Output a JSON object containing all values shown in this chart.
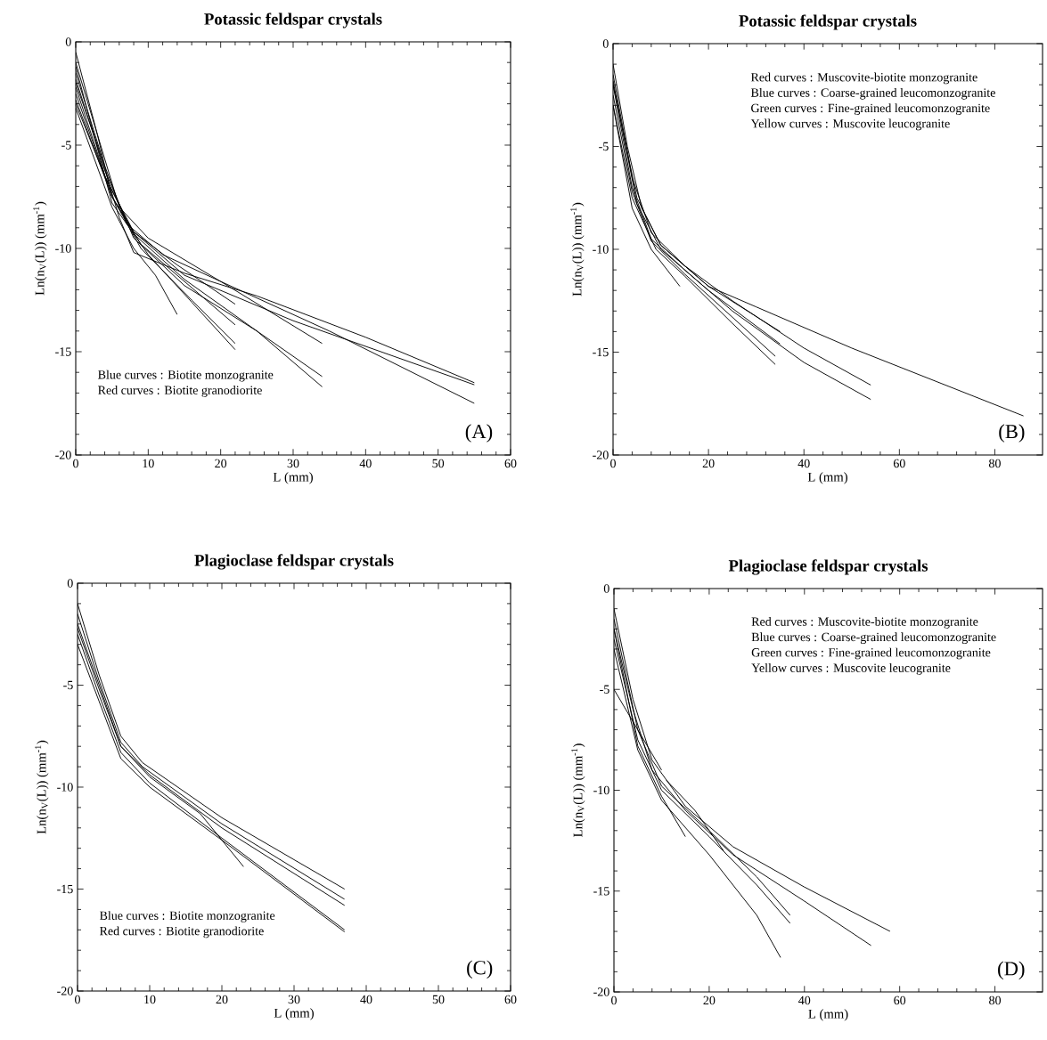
{
  "chart_data": [
    {
      "type": "line",
      "title": "Potassic feldspar crystals",
      "xlabel": "L (mm)",
      "ylabel": "Ln(n$_{V}$(L)) (mm$^{-1}$)",
      "xlim": [
        0,
        60
      ],
      "ylim": [
        -20,
        0
      ],
      "xticks": [
        0,
        10,
        20,
        30,
        40,
        50,
        60
      ],
      "yticks": [
        -20,
        -15,
        -10,
        -5,
        0
      ],
      "annotations": [
        "Blue curves : Biotite monzogranite",
        "Red curves : Biotite granodiorite",
        "(A)"
      ],
      "series": [
        {
          "color": "#000000",
          "x": [
            0,
            3,
            5,
            8,
            15,
            30,
            55
          ],
          "values": [
            -0.5,
            -4.5,
            -7.5,
            -9.2,
            -11.3,
            -13.5,
            -16.6
          ]
        },
        {
          "color": "#000000",
          "x": [
            0,
            3,
            6,
            10,
            20,
            35,
            55
          ],
          "values": [
            -1,
            -4.5,
            -8,
            -9.5,
            -11.6,
            -14,
            -17.5
          ]
        },
        {
          "color": "#000000",
          "x": [
            0,
            3,
            6,
            8,
            15,
            25,
            40,
            55
          ],
          "values": [
            -2,
            -5,
            -8.5,
            -10.2,
            -11.2,
            -12.3,
            -14.3,
            -16.5
          ]
        },
        {
          "color": "#000000",
          "x": [
            0,
            4,
            7,
            12,
            20,
            34
          ],
          "values": [
            -1.5,
            -6,
            -8.8,
            -10.3,
            -11.6,
            -14.6
          ]
        },
        {
          "color": "#000000",
          "x": [
            0,
            4,
            8,
            15,
            25,
            34
          ],
          "values": [
            -2.5,
            -6.5,
            -9.3,
            -11.5,
            -14,
            -16.7
          ]
        },
        {
          "color": "#000000",
          "x": [
            0,
            4,
            8,
            15,
            25,
            34
          ],
          "values": [
            -1.8,
            -6.2,
            -9.5,
            -11.8,
            -14,
            -16.2
          ]
        },
        {
          "color": "#000000",
          "x": [
            0,
            4,
            8,
            14,
            22
          ],
          "values": [
            -3,
            -6.5,
            -9.2,
            -10.8,
            -12.7
          ]
        },
        {
          "color": "#000000",
          "x": [
            0,
            5,
            9,
            16,
            22
          ],
          "values": [
            -2.2,
            -7.5,
            -9.8,
            -11.9,
            -13.7
          ]
        },
        {
          "color": "#000000",
          "x": [
            0,
            5,
            9,
            16,
            22
          ],
          "values": [
            -2.8,
            -7.5,
            -10,
            -12.5,
            -14.6
          ]
        },
        {
          "color": "#000000",
          "x": [
            0,
            5,
            10,
            16,
            22
          ],
          "values": [
            -1.2,
            -7.8,
            -10.3,
            -12.6,
            -14.9
          ]
        },
        {
          "color": "#000000",
          "x": [
            0,
            5,
            8,
            11,
            14
          ],
          "values": [
            -3.2,
            -8,
            -10,
            -11.3,
            -13.2
          ]
        }
      ]
    },
    {
      "type": "line",
      "title": "Potassic feldspar crystals",
      "xlabel": "L (mm)",
      "ylabel": "Ln(n$_{V}$(L)) (mm$^{-1}$)",
      "xlim": [
        0,
        90
      ],
      "ylim": [
        -20,
        0
      ],
      "xticks": [
        0,
        20,
        40,
        60,
        80
      ],
      "yticks": [
        -20,
        -15,
        -10,
        -5,
        0
      ],
      "annotations": [
        "Red curves : Muscovite-biotite monzogranite",
        "Blue curves : Coarse-grained leucomonzogranite",
        "Green curves : Fine-grained leucomonzogranite",
        "Yellow curves : Muscovite leucogranite",
        "(B)"
      ],
      "series": [
        {
          "color": "#000000",
          "x": [
            0,
            3,
            6,
            10,
            20,
            30,
            50,
            86
          ],
          "values": [
            -1,
            -5,
            -8,
            -9.8,
            -11.8,
            -12.8,
            -14.8,
            -18.1
          ]
        },
        {
          "color": "#000000",
          "x": [
            0,
            4,
            8,
            15,
            25,
            40,
            54
          ],
          "values": [
            -1.5,
            -6.5,
            -9.2,
            -10.8,
            -12.5,
            -14.8,
            -16.6
          ]
        },
        {
          "color": "#000000",
          "x": [
            0,
            4,
            8,
            15,
            25,
            40,
            54
          ],
          "values": [
            -2,
            -7,
            -9.5,
            -11,
            -13,
            -15.5,
            -17.3
          ]
        },
        {
          "color": "#000000",
          "x": [
            0,
            4,
            8,
            15,
            25,
            34
          ],
          "values": [
            -2.5,
            -7.2,
            -9.6,
            -11.2,
            -13.3,
            -15.2
          ]
        },
        {
          "color": "#000000",
          "x": [
            0,
            4,
            9,
            15,
            25,
            34
          ],
          "values": [
            -3,
            -7.5,
            -10,
            -11.3,
            -13.6,
            -15.6
          ]
        },
        {
          "color": "#000000",
          "x": [
            0,
            5,
            10,
            20,
            35
          ],
          "values": [
            -2,
            -7.5,
            -9.8,
            -11.8,
            -14
          ]
        },
        {
          "color": "#000000",
          "x": [
            0,
            5,
            10,
            20,
            35
          ],
          "values": [
            -1.8,
            -7.8,
            -10,
            -12,
            -14.6
          ]
        },
        {
          "color": "#000000",
          "x": [
            0,
            4,
            8,
            14
          ],
          "values": [
            -3,
            -8,
            -10,
            -11.8
          ]
        }
      ]
    },
    {
      "type": "line",
      "title": "Plagioclase feldspar crystals",
      "xlabel": "L (mm)",
      "ylabel": "Ln(n$_{V}$(L)) (mm$^{-1}$)",
      "xlim": [
        0,
        60
      ],
      "ylim": [
        -20,
        0
      ],
      "xticks": [
        0,
        10,
        20,
        30,
        40,
        50,
        60
      ],
      "yticks": [
        -20,
        -15,
        -10,
        -5,
        0
      ],
      "annotations": [
        "Blue curves : Biotite monzogranite",
        "Red curves : Biotite granodiorite",
        "(C)"
      ],
      "series": [
        {
          "color": "#000000",
          "x": [
            0,
            3,
            6,
            9,
            20,
            37
          ],
          "values": [
            -1,
            -4.5,
            -7.5,
            -8.8,
            -11.5,
            -15
          ]
        },
        {
          "color": "#000000",
          "x": [
            0,
            3,
            6,
            9,
            20,
            37
          ],
          "values": [
            -1.5,
            -4.8,
            -7.8,
            -9,
            -11.8,
            -15.5
          ]
        },
        {
          "color": "#000000",
          "x": [
            0,
            3,
            6,
            10,
            20,
            37
          ],
          "values": [
            -2,
            -5,
            -8,
            -9.4,
            -12,
            -15.8
          ]
        },
        {
          "color": "#000000",
          "x": [
            0,
            3,
            6,
            10,
            20,
            37
          ],
          "values": [
            -2.5,
            -5.5,
            -8.3,
            -9.8,
            -12.5,
            -17
          ]
        },
        {
          "color": "#000000",
          "x": [
            0,
            3,
            6,
            10,
            20,
            37
          ],
          "values": [
            -3,
            -5.8,
            -8.6,
            -10,
            -12.6,
            -17.1
          ]
        },
        {
          "color": "#000000",
          "x": [
            0,
            3,
            6,
            10,
            17,
            23
          ],
          "values": [
            -2.2,
            -5.2,
            -8,
            -9.5,
            -11.3,
            -13.9
          ]
        }
      ]
    },
    {
      "type": "line",
      "title": "Plagioclase feldspar crystals",
      "xlabel": "L (mm)",
      "ylabel": "Ln(n$_{V}$(L)) (mm$^{-1}$)",
      "xlim": [
        0,
        90
      ],
      "ylim": [
        -20,
        0
      ],
      "xticks": [
        0,
        20,
        40,
        60,
        80
      ],
      "yticks": [
        -20,
        -15,
        -10,
        -5,
        0
      ],
      "annotations": [
        "Red curves : Muscovite-biotite monzogranite",
        "Blue curves : Coarse-grained leucomonzogranite",
        "Green curves : Fine-grained leucomonzogranite",
        "Yellow curves : Muscovite leucogranite",
        "(D)"
      ],
      "series": [
        {
          "color": "#000000",
          "x": [
            0,
            4,
            8,
            15,
            25,
            40,
            58
          ],
          "values": [
            -1,
            -5.5,
            -8.5,
            -10.8,
            -12.8,
            -14.8,
            -17
          ]
        },
        {
          "color": "#000000",
          "x": [
            0,
            4,
            8,
            15,
            25,
            40,
            54
          ],
          "values": [
            -2,
            -6,
            -9,
            -11,
            -13.2,
            -15.5,
            -17.7
          ]
        },
        {
          "color": "#000000",
          "x": [
            0,
            5,
            10
          ],
          "values": [
            -5,
            -7,
            -9
          ]
        },
        {
          "color": "#000000",
          "x": [
            0,
            5,
            10,
            20,
            30,
            37
          ],
          "values": [
            -1.5,
            -7,
            -9.8,
            -12,
            -14.3,
            -16.2
          ]
        },
        {
          "color": "#000000",
          "x": [
            0,
            5,
            10,
            20,
            30,
            37
          ],
          "values": [
            -2.5,
            -7.5,
            -10,
            -12.3,
            -14.7,
            -16.6
          ]
        },
        {
          "color": "#000000",
          "x": [
            0,
            5,
            10,
            20,
            30,
            35
          ],
          "values": [
            -3,
            -8,
            -10.5,
            -13.2,
            -16.2,
            -18.3
          ]
        },
        {
          "color": "#000000",
          "x": [
            0,
            5,
            10,
            15
          ],
          "values": [
            -2,
            -7.8,
            -10.3,
            -12.3
          ]
        },
        {
          "color": "#000000",
          "x": [
            11,
            17,
            23
          ],
          "values": [
            -9.5,
            -11,
            -13
          ]
        }
      ]
    }
  ]
}
